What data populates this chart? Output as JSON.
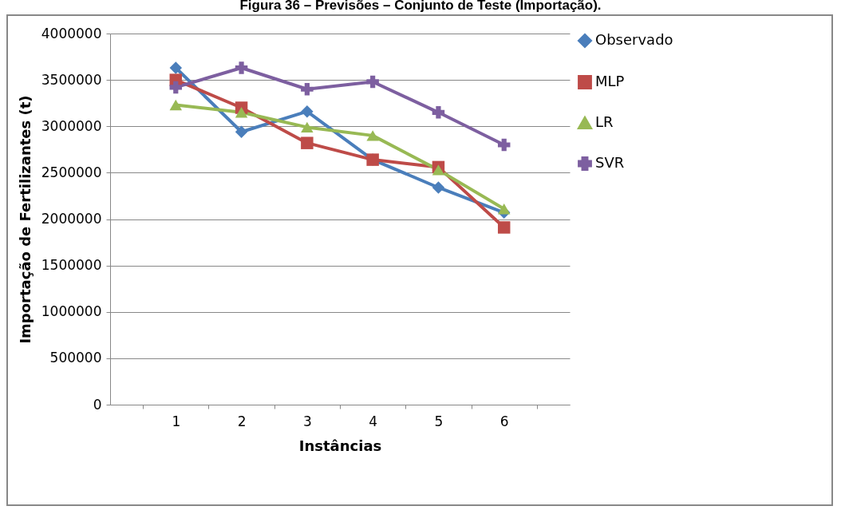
{
  "chart_data": {
    "type": "line",
    "title": "Figura 36 – Previsões – Conjunto de Teste (Importação).",
    "xlabel": "Instâncias",
    "ylabel": "Importação de Fertilizantes (t)",
    "categories": [
      "1",
      "2",
      "3",
      "4",
      "5",
      "6"
    ],
    "series": [
      {
        "name": "Observado",
        "color": "#4a7ebb",
        "marker": "diamond",
        "values": [
          3630000,
          2940000,
          3160000,
          2640000,
          2340000,
          2070000
        ]
      },
      {
        "name": "MLP",
        "color": "#be4b48",
        "marker": "square",
        "values": [
          3500000,
          3200000,
          2820000,
          2640000,
          2560000,
          1910000
        ]
      },
      {
        "name": "LR",
        "color": "#98b954",
        "marker": "triangle",
        "values": [
          3230000,
          3150000,
          2990000,
          2900000,
          2530000,
          2110000
        ]
      },
      {
        "name": "SVR",
        "color": "#7d5fa0",
        "marker": "cross",
        "values": [
          3420000,
          3630000,
          3400000,
          3480000,
          3150000,
          2800000
        ]
      }
    ],
    "ylim": [
      0,
      4000000
    ],
    "yticks": [
      0,
      500000,
      1000000,
      1500000,
      2000000,
      2500000,
      3000000,
      3500000,
      4000000
    ],
    "grid": "y",
    "legend": "right",
    "line_style": "solid"
  }
}
